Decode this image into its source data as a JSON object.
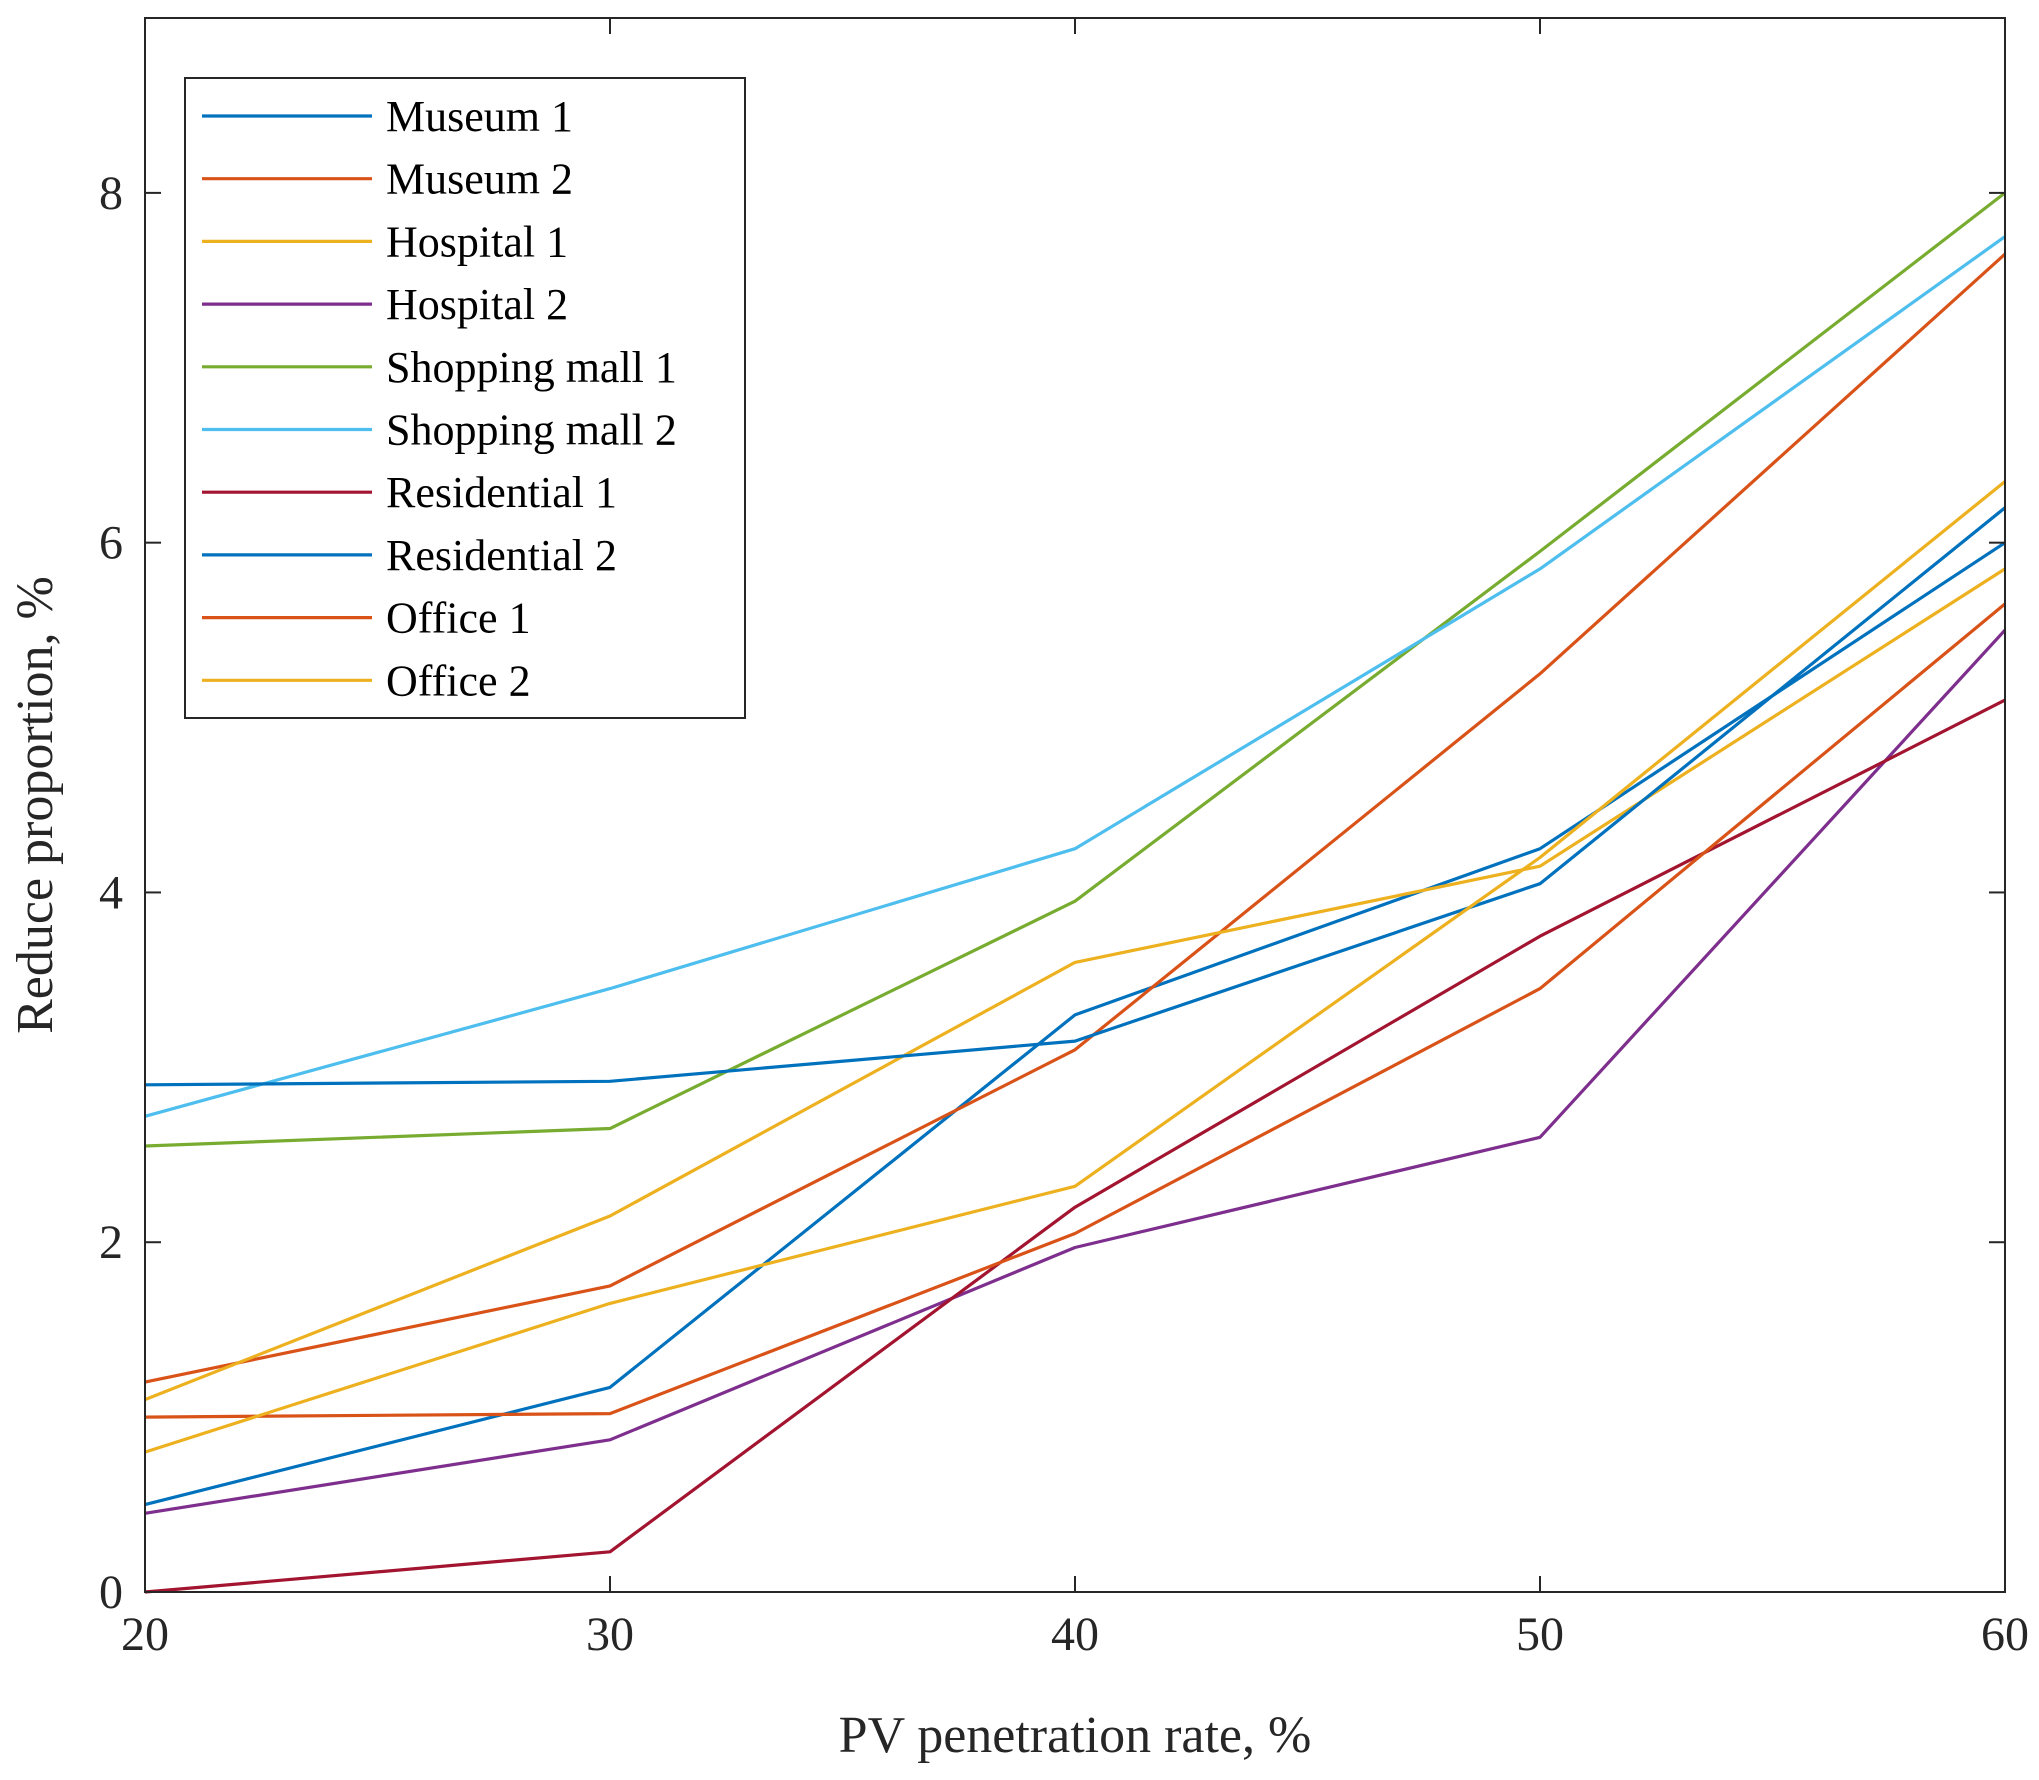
{
  "chart_data": {
    "type": "line",
    "title": "",
    "xlabel": "PV penetration rate, %",
    "ylabel": "Reduce proportion, %",
    "xlim": [
      20,
      60
    ],
    "ylim": [
      0,
      9
    ],
    "xticks": [
      "20",
      "30",
      "40",
      "50",
      "60"
    ],
    "yticks": [
      "0",
      "2",
      "4",
      "6",
      "8"
    ],
    "grid": false,
    "legend_position": "top-left",
    "x": [
      20,
      30,
      40,
      50,
      60
    ],
    "series": [
      {
        "name": "Museum 1",
        "color": "#0072BD",
        "values": [
          0.5,
          1.17,
          3.3,
          4.25,
          6.0
        ]
      },
      {
        "name": "Museum 2",
        "color": "#D95319",
        "values": [
          1.2,
          1.75,
          3.1,
          5.25,
          7.65
        ]
      },
      {
        "name": "Hospital 1",
        "color": "#EDB120",
        "values": [
          1.1,
          2.15,
          3.6,
          4.15,
          5.85
        ]
      },
      {
        "name": "Hospital 2",
        "color": "#7E2F8E",
        "values": [
          0.45,
          0.87,
          1.97,
          2.6,
          5.5
        ]
      },
      {
        "name": "Shopping mall 1",
        "color": "#77AC30",
        "values": [
          2.55,
          2.65,
          3.95,
          5.95,
          8.0
        ]
      },
      {
        "name": "Shopping mall 2",
        "color": "#4DBEEE",
        "values": [
          2.72,
          3.45,
          4.25,
          5.85,
          7.75
        ]
      },
      {
        "name": "Residential 1",
        "color": "#A2142F",
        "values": [
          0.0,
          0.23,
          2.2,
          3.75,
          5.1
        ]
      },
      {
        "name": "Residential 2",
        "color": "#0072BD",
        "values": [
          2.9,
          2.92,
          3.15,
          4.05,
          6.2
        ]
      },
      {
        "name": "Office 1",
        "color": "#D95319",
        "values": [
          1.0,
          1.02,
          2.05,
          3.45,
          5.65
        ]
      },
      {
        "name": "Office 2",
        "color": "#EDB120",
        "values": [
          0.8,
          1.65,
          2.32,
          4.2,
          6.35
        ]
      }
    ]
  }
}
